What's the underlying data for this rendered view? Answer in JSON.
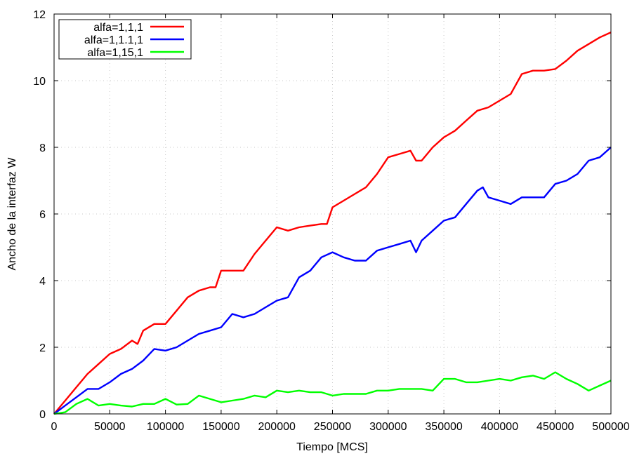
{
  "chart_data": {
    "type": "line",
    "title": "",
    "xlabel": "Tiempo [MCS]",
    "ylabel": "Ancho de la interfaz W",
    "xlim": [
      0,
      500000
    ],
    "ylim": [
      0,
      12
    ],
    "xticks": [
      0,
      50000,
      100000,
      150000,
      200000,
      250000,
      300000,
      350000,
      400000,
      450000,
      500000
    ],
    "xtick_labels": [
      "0",
      "50000",
      "100000",
      "150000",
      "200000",
      "250000",
      "300000",
      "350000",
      "400000",
      "450000",
      "500000"
    ],
    "yticks": [
      0,
      2,
      4,
      6,
      8,
      10,
      12
    ],
    "ytick_labels": [
      "0",
      "2",
      "4",
      "6",
      "8",
      "10",
      "12"
    ],
    "grid": true,
    "legend_position": "top-left",
    "series": [
      {
        "name": "alfa=1,1,1",
        "color": "#ff0000",
        "x": [
          0,
          10000,
          20000,
          30000,
          40000,
          50000,
          60000,
          70000,
          75000,
          80000,
          90000,
          100000,
          110000,
          120000,
          130000,
          140000,
          145000,
          150000,
          160000,
          170000,
          180000,
          190000,
          200000,
          210000,
          220000,
          230000,
          240000,
          245000,
          250000,
          260000,
          270000,
          280000,
          290000,
          300000,
          310000,
          320000,
          325000,
          330000,
          340000,
          350000,
          360000,
          370000,
          380000,
          390000,
          400000,
          410000,
          420000,
          430000,
          440000,
          450000,
          460000,
          470000,
          480000,
          490000,
          500000
        ],
        "y": [
          0.0,
          0.4,
          0.8,
          1.2,
          1.5,
          1.8,
          1.95,
          2.2,
          2.1,
          2.5,
          2.7,
          2.7,
          3.1,
          3.5,
          3.7,
          3.8,
          3.8,
          4.3,
          4.3,
          4.3,
          4.8,
          5.2,
          5.6,
          5.5,
          5.6,
          5.65,
          5.7,
          5.7,
          6.2,
          6.4,
          6.6,
          6.8,
          7.2,
          7.7,
          7.8,
          7.9,
          7.6,
          7.6,
          8.0,
          8.3,
          8.5,
          8.8,
          9.1,
          9.2,
          9.4,
          9.6,
          10.2,
          10.3,
          10.3,
          10.35,
          10.6,
          10.9,
          11.1,
          11.3,
          11.45
        ]
      },
      {
        "name": "alfa=1,1.1,1",
        "color": "#0000ff",
        "x": [
          0,
          10000,
          20000,
          30000,
          40000,
          50000,
          60000,
          70000,
          80000,
          90000,
          100000,
          110000,
          120000,
          130000,
          140000,
          150000,
          160000,
          170000,
          180000,
          190000,
          200000,
          210000,
          220000,
          230000,
          240000,
          250000,
          260000,
          270000,
          280000,
          290000,
          300000,
          310000,
          320000,
          325000,
          330000,
          340000,
          350000,
          360000,
          370000,
          380000,
          385000,
          390000,
          400000,
          410000,
          420000,
          430000,
          440000,
          450000,
          460000,
          470000,
          480000,
          490000,
          500000
        ],
        "y": [
          0.0,
          0.25,
          0.5,
          0.75,
          0.75,
          0.95,
          1.2,
          1.35,
          1.6,
          1.95,
          1.9,
          2.0,
          2.2,
          2.4,
          2.5,
          2.6,
          3.0,
          2.9,
          3.0,
          3.2,
          3.4,
          3.5,
          4.1,
          4.3,
          4.7,
          4.85,
          4.7,
          4.6,
          4.6,
          4.9,
          5.0,
          5.1,
          5.2,
          4.85,
          5.2,
          5.5,
          5.8,
          5.9,
          6.3,
          6.7,
          6.8,
          6.5,
          6.4,
          6.3,
          6.5,
          6.5,
          6.5,
          6.9,
          7.0,
          7.2,
          7.6,
          7.7,
          8.0
        ]
      },
      {
        "name": "alfa=1,15,1",
        "color": "#00ff00",
        "x": [
          0,
          10000,
          20000,
          30000,
          40000,
          50000,
          60000,
          70000,
          80000,
          90000,
          100000,
          110000,
          120000,
          130000,
          140000,
          150000,
          160000,
          170000,
          180000,
          190000,
          200000,
          210000,
          220000,
          230000,
          240000,
          250000,
          260000,
          270000,
          280000,
          290000,
          300000,
          310000,
          320000,
          330000,
          340000,
          350000,
          360000,
          370000,
          380000,
          390000,
          400000,
          410000,
          420000,
          430000,
          440000,
          450000,
          460000,
          470000,
          480000,
          490000,
          500000
        ],
        "y": [
          0.0,
          0.05,
          0.3,
          0.45,
          0.25,
          0.3,
          0.25,
          0.22,
          0.3,
          0.3,
          0.45,
          0.28,
          0.3,
          0.55,
          0.45,
          0.35,
          0.4,
          0.45,
          0.55,
          0.5,
          0.7,
          0.65,
          0.7,
          0.65,
          0.65,
          0.55,
          0.6,
          0.6,
          0.6,
          0.7,
          0.7,
          0.75,
          0.75,
          0.75,
          0.7,
          1.05,
          1.05,
          0.95,
          0.95,
          1.0,
          1.05,
          1.0,
          1.1,
          1.15,
          1.05,
          1.25,
          1.05,
          0.9,
          0.7,
          0.85,
          1.0
        ]
      }
    ]
  }
}
